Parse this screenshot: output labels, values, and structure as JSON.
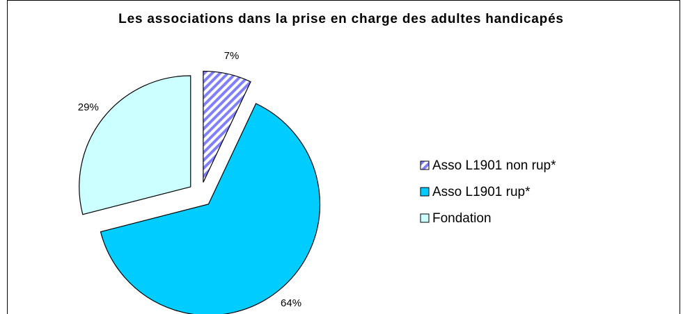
{
  "chart_data": {
    "type": "pie",
    "title": "Les associations dans la prise en charge des adultes handicapés",
    "categories": [
      "Asso L1901 non rup*",
      "Asso L1901 rup*",
      "Fondation"
    ],
    "values": [
      7,
      64,
      29
    ],
    "value_labels": [
      "7%",
      "64%",
      "29%"
    ],
    "colors": [
      "#8080ff",
      "#00ccff",
      "#ccffff"
    ],
    "hatch": [
      true,
      false,
      false
    ],
    "legend": "right"
  }
}
